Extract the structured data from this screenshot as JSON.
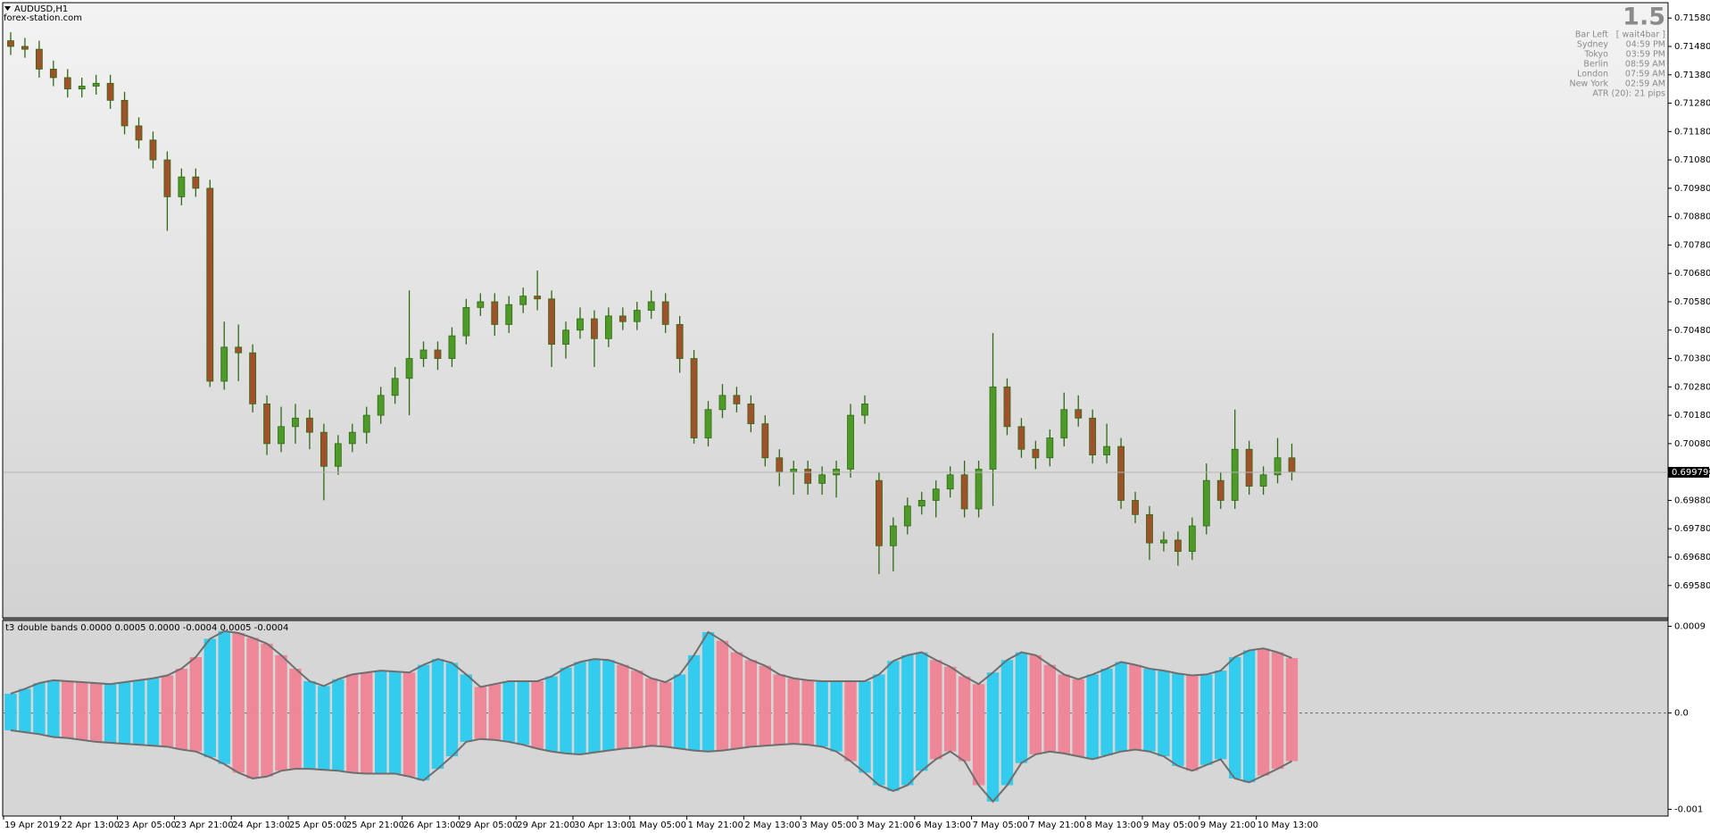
{
  "chart_data": [
    {
      "type": "candlestick",
      "title": "AUDUSD,H1",
      "subtitle": "forex-station.com",
      "up_color": "#4e9a28",
      "down_color": "#a0502a",
      "wick_color": "#2f6a12",
      "categories": [
        "19 Apr 2019",
        null,
        null,
        null,
        "22 Apr 13:00",
        null,
        null,
        null,
        "23 Apr 05:00",
        null,
        null,
        null,
        "23 Apr 21:00",
        null,
        null,
        null,
        "24 Apr 13:00",
        null,
        null,
        null,
        "25 Apr 05:00",
        null,
        null,
        null,
        "25 Apr 21:00",
        null,
        null,
        null,
        "26 Apr 13:00",
        null,
        null,
        null,
        "29 Apr 05:00",
        null,
        null,
        null,
        "29 Apr 21:00",
        null,
        null,
        null,
        "30 Apr 13:00",
        null,
        null,
        null,
        "1 May 05:00",
        null,
        null,
        null,
        "1 May 21:00",
        null,
        null,
        null,
        "2 May 13:00",
        null,
        null,
        null,
        "3 May 05:00",
        null,
        null,
        null,
        "3 May 21:00",
        null,
        null,
        null,
        "6 May 13:00",
        null,
        null,
        null,
        "7 May 05:00",
        null,
        null,
        null,
        "7 May 21:00",
        null,
        null,
        null,
        "8 May 13:00",
        null,
        null,
        null,
        "9 May 05:00",
        null,
        null,
        null,
        "9 May 21:00",
        null,
        null,
        null,
        "10 May 13:00",
        null,
        null
      ],
      "open": [
        0.715,
        0.7148,
        0.7147,
        0.714,
        0.7137,
        0.7133,
        0.7134,
        0.7135,
        0.7129,
        0.712,
        0.7115,
        0.7108,
        0.7095,
        0.7102,
        0.7098,
        0.703,
        0.7042,
        0.704,
        0.7022,
        0.7008,
        0.7014,
        0.7017,
        0.7012,
        0.7,
        0.7008,
        0.7012,
        0.7018,
        0.7025,
        0.7031,
        0.7038,
        0.7041,
        0.7038,
        0.7046,
        0.7056,
        0.7058,
        0.705,
        0.7057,
        0.706,
        0.7059,
        0.7043,
        0.7048,
        0.7052,
        0.7045,
        0.7053,
        0.7051,
        0.7055,
        0.7058,
        0.705,
        0.7038,
        0.701,
        0.702,
        0.7025,
        0.7022,
        0.7015,
        0.7003,
        0.6998,
        0.6999,
        0.6994,
        0.6997,
        0.6999,
        0.7018,
        0.6995,
        0.6972,
        0.6979,
        0.6986,
        0.6988,
        0.6992,
        0.6997,
        0.6985,
        0.6999,
        0.7028,
        0.7014,
        0.7006,
        0.7003,
        0.701,
        0.702,
        0.7017,
        0.7004,
        0.7007,
        0.6988,
        0.6983,
        0.6973,
        0.6974,
        0.697,
        0.6979,
        0.6995,
        0.6988,
        0.7006,
        0.6993,
        0.6997,
        0.7003
      ],
      "high": [
        0.7153,
        0.7151,
        0.715,
        0.7143,
        0.714,
        0.7137,
        0.7138,
        0.7138,
        0.7132,
        0.7123,
        0.7118,
        0.7111,
        0.7105,
        0.7105,
        0.7101,
        0.7051,
        0.705,
        0.7043,
        0.7025,
        0.7021,
        0.7022,
        0.702,
        0.7015,
        0.7011,
        0.7015,
        0.7021,
        0.7028,
        0.7035,
        0.7062,
        0.7044,
        0.7044,
        0.7049,
        0.7059,
        0.7061,
        0.7061,
        0.706,
        0.7063,
        0.7069,
        0.7062,
        0.7051,
        0.7056,
        0.7055,
        0.7056,
        0.7056,
        0.7058,
        0.7062,
        0.7061,
        0.7053,
        0.7041,
        0.7023,
        0.7029,
        0.7028,
        0.7025,
        0.7018,
        0.7006,
        0.7002,
        0.7002,
        0.7,
        0.7002,
        0.7022,
        0.7025,
        0.6998,
        0.6982,
        0.6989,
        0.6991,
        0.6995,
        0.7,
        0.7002,
        0.7002,
        0.7047,
        0.7031,
        0.7017,
        0.7009,
        0.7013,
        0.7026,
        0.7025,
        0.702,
        0.7015,
        0.701,
        0.6991,
        0.6986,
        0.6977,
        0.6977,
        0.6982,
        0.7001,
        0.6998,
        0.702,
        0.7009,
        0.7,
        0.701,
        0.7008
      ],
      "low": [
        0.7145,
        0.7144,
        0.7137,
        0.7134,
        0.713,
        0.713,
        0.7131,
        0.7126,
        0.7117,
        0.7112,
        0.7105,
        0.7083,
        0.7092,
        0.7095,
        0.7028,
        0.7027,
        0.703,
        0.7019,
        0.7004,
        0.7005,
        0.7008,
        0.7006,
        0.6988,
        0.6997,
        0.7005,
        0.7008,
        0.7015,
        0.7022,
        0.7018,
        0.7035,
        0.7034,
        0.7035,
        0.7043,
        0.7053,
        0.7046,
        0.7047,
        0.7054,
        0.7055,
        0.7035,
        0.7038,
        0.7045,
        0.7035,
        0.7042,
        0.7048,
        0.7048,
        0.7052,
        0.7047,
        0.7033,
        0.7008,
        0.7007,
        0.7017,
        0.7019,
        0.7012,
        0.7,
        0.6993,
        0.699,
        0.699,
        0.699,
        0.6989,
        0.6996,
        0.7015,
        0.6962,
        0.6963,
        0.6976,
        0.6983,
        0.6982,
        0.6989,
        0.6982,
        0.6982,
        0.6986,
        0.7011,
        0.7003,
        0.6999,
        0.7,
        0.7007,
        0.7014,
        0.7001,
        0.7001,
        0.6985,
        0.698,
        0.6967,
        0.697,
        0.6965,
        0.6967,
        0.6976,
        0.6985,
        0.6985,
        0.699,
        0.699,
        0.6994,
        0.6995
      ],
      "close": [
        0.7148,
        0.7147,
        0.714,
        0.7137,
        0.7133,
        0.7134,
        0.7135,
        0.7129,
        0.712,
        0.7115,
        0.7108,
        0.7095,
        0.7102,
        0.7098,
        0.703,
        0.7042,
        0.704,
        0.7022,
        0.7008,
        0.7014,
        0.7017,
        0.7012,
        0.7,
        0.7008,
        0.7012,
        0.7018,
        0.7025,
        0.7031,
        0.7038,
        0.7041,
        0.7038,
        0.7046,
        0.7056,
        0.7058,
        0.705,
        0.7057,
        0.706,
        0.7059,
        0.7043,
        0.7048,
        0.7052,
        0.7045,
        0.7053,
        0.7051,
        0.7055,
        0.7058,
        0.705,
        0.7038,
        0.701,
        0.702,
        0.7025,
        0.7022,
        0.7015,
        0.7003,
        0.6998,
        0.6999,
        0.6994,
        0.6997,
        0.6999,
        0.7018,
        0.7022,
        0.6972,
        0.6979,
        0.6986,
        0.6988,
        0.6992,
        0.6997,
        0.6985,
        0.6999,
        0.7028,
        0.7014,
        0.7006,
        0.7003,
        0.701,
        0.702,
        0.7017,
        0.7004,
        0.7007,
        0.6988,
        0.6983,
        0.6973,
        0.6974,
        0.697,
        0.6979,
        0.6995,
        0.6988,
        0.7006,
        0.6993,
        0.6997,
        0.7003,
        0.6998
      ],
      "last_price": 0.69979,
      "ylim": [
        0.69466,
        0.71631
      ],
      "yticks": [
        {
          "value": 0.6958,
          "label": "0.69580"
        },
        {
          "value": 0.6968,
          "label": "0.69680"
        },
        {
          "value": 0.6978,
          "label": "0.69780"
        },
        {
          "value": 0.6988,
          "label": "0.69880"
        },
        {
          "value": 0.6998,
          "label": "0.69980"
        },
        {
          "value": 0.7008,
          "label": "0.70080"
        },
        {
          "value": 0.7018,
          "label": "0.70180"
        },
        {
          "value": 0.7028,
          "label": "0.70280"
        },
        {
          "value": 0.7038,
          "label": "0.70380"
        },
        {
          "value": 0.7048,
          "label": "0.70480"
        },
        {
          "value": 0.7058,
          "label": "0.70580"
        },
        {
          "value": 0.7068,
          "label": "0.70680"
        },
        {
          "value": 0.7078,
          "label": "0.70780"
        },
        {
          "value": 0.7088,
          "label": "0.70880"
        },
        {
          "value": 0.7098,
          "label": "0.70980"
        },
        {
          "value": 0.7108,
          "label": "0.71080"
        },
        {
          "value": 0.7118,
          "label": "0.71180"
        },
        {
          "value": 0.7128,
          "label": "0.71280"
        },
        {
          "value": 0.7138,
          "label": "0.71380"
        },
        {
          "value": 0.7148,
          "label": "0.71480"
        },
        {
          "value": 0.7158,
          "label": "0.71580"
        }
      ]
    },
    {
      "type": "bands",
      "title": "t3 double bands 0.0000 0.0005 0.0000 -0.0004 0.0005 -0.0004",
      "band_color": "#6e6e6e",
      "series": [
        {
          "values": [
            0.0002,
            0.00025,
            0.00031,
            0.00034,
            0.00033,
            0.00032,
            0.00031,
            0.0003,
            0.00032,
            0.00034,
            0.00036,
            0.00039,
            0.00046,
            0.00058,
            0.00077,
            0.00085,
            0.00083,
            0.00078,
            0.00072,
            0.0006,
            0.00046,
            0.00033,
            0.00028,
            0.00035,
            0.0004,
            0.00042,
            0.00044,
            0.00043,
            0.00042,
            0.0005,
            0.00056,
            0.00052,
            0.0004,
            0.00027,
            0.0003,
            0.00033,
            0.00033,
            0.00033,
            0.00038,
            0.00047,
            0.00053,
            0.00056,
            0.00055,
            0.0005,
            0.00044,
            0.00036,
            0.00032,
            0.0004,
            0.0006,
            0.00084,
            0.00075,
            0.00063,
            0.00055,
            0.00049,
            0.0004,
            0.00036,
            0.00034,
            0.00033,
            0.00033,
            0.00033,
            0.00033,
            0.0004,
            0.00054,
            0.0006,
            0.00063,
            0.00055,
            0.00048,
            0.00038,
            0.0003,
            0.00042,
            0.00055,
            0.00063,
            0.0006,
            0.0005,
            0.0004,
            0.00035,
            0.0004,
            0.00046,
            0.00053,
            0.0005,
            0.00046,
            0.00044,
            0.00041,
            0.00039,
            0.0004,
            0.00044,
            0.00058,
            0.00065,
            0.00067,
            0.00063,
            0.00057
          ],
          "colors": [
            "#3ce",
            "#3ce",
            "#3ce",
            "#3ce",
            "#e89",
            "#e89",
            "#e89",
            "#3ce",
            "#3ce",
            "#3ce",
            "#3ce",
            "#e89",
            "#e89",
            "#e89",
            "#3ce",
            "#3ce",
            "#e89",
            "#e89",
            "#e89",
            "#e89",
            "#e89",
            "#3ce",
            "#3ce",
            "#3ce",
            "#e89",
            "#e89",
            "#3ce",
            "#3ce",
            "#e89",
            "#3ce",
            "#3ce",
            "#3ce",
            "#3ce",
            "#e89",
            "#e89",
            "#3ce",
            "#3ce",
            "#e89",
            "#3ce",
            "#3ce",
            "#3ce",
            "#3ce",
            "#3ce",
            "#e89",
            "#e89",
            "#e89",
            "#e89",
            "#3ce",
            "#3ce",
            "#3ce",
            "#e89",
            "#e89",
            "#e89",
            "#e89",
            "#e89",
            "#e89",
            "#e89",
            "#3ce",
            "#3ce",
            "#e89",
            "#3ce",
            "#3ce",
            "#3ce",
            "#3ce",
            "#3ce",
            "#e89",
            "#e89",
            "#e89",
            "#e89",
            "#3ce",
            "#3ce",
            "#3ce",
            "#e89",
            "#e89",
            "#e89",
            "#e89",
            "#3ce",
            "#3ce",
            "#3ce",
            "#e89",
            "#3ce",
            "#3ce",
            "#3ce",
            "#e89",
            "#3ce",
            "#3ce",
            "#3ce",
            "#3ce",
            "#e89",
            "#e89",
            "#e89"
          ]
        },
        {
          "values": [
            -0.00018,
            -0.0002,
            -0.00022,
            -0.00025,
            -0.00026,
            -0.00028,
            -0.0003,
            -0.00031,
            -0.00032,
            -0.00033,
            -0.00034,
            -0.00035,
            -0.00038,
            -0.0004,
            -0.00046,
            -0.00053,
            -0.00062,
            -0.00068,
            -0.00066,
            -0.0006,
            -0.00058,
            -0.00058,
            -0.00059,
            -0.0006,
            -0.00062,
            -0.00063,
            -0.00063,
            -0.00063,
            -0.00066,
            -0.0007,
            -0.00058,
            -0.00045,
            -0.0003,
            -0.00027,
            -0.00028,
            -0.0003,
            -0.00033,
            -0.00037,
            -0.0004,
            -0.00042,
            -0.00043,
            -0.00041,
            -0.00039,
            -0.00037,
            -0.00036,
            -0.00034,
            -0.00035,
            -0.00037,
            -0.00039,
            -0.0004,
            -0.00039,
            -0.00037,
            -0.00035,
            -0.00034,
            -0.00033,
            -0.00032,
            -0.00033,
            -0.00035,
            -0.0004,
            -0.0005,
            -0.00062,
            -0.00075,
            -0.00081,
            -0.00075,
            -0.0006,
            -0.00048,
            -0.0004,
            -0.0005,
            -0.00075,
            -0.00092,
            -0.00075,
            -0.00052,
            -0.00043,
            -0.0004,
            -0.00042,
            -0.00045,
            -0.00048,
            -0.00044,
            -0.0004,
            -0.00038,
            -0.0004,
            -0.00045,
            -0.00055,
            -0.0006,
            -0.00054,
            -0.00048,
            -0.00068,
            -0.00072,
            -0.00065,
            -0.00058,
            -0.0005
          ],
          "colors": [
            "#3ce",
            "#3ce",
            "#3ce",
            "#3ce",
            "#e89",
            "#e89",
            "#e89",
            "#3ce",
            "#3ce",
            "#3ce",
            "#3ce",
            "#e89",
            "#e89",
            "#e89",
            "#3ce",
            "#3ce",
            "#e89",
            "#e89",
            "#e89",
            "#e89",
            "#e89",
            "#3ce",
            "#3ce",
            "#3ce",
            "#e89",
            "#e89",
            "#3ce",
            "#3ce",
            "#e89",
            "#3ce",
            "#3ce",
            "#3ce",
            "#3ce",
            "#e89",
            "#e89",
            "#3ce",
            "#3ce",
            "#e89",
            "#3ce",
            "#3ce",
            "#3ce",
            "#3ce",
            "#3ce",
            "#e89",
            "#e89",
            "#e89",
            "#e89",
            "#3ce",
            "#3ce",
            "#3ce",
            "#e89",
            "#e89",
            "#e89",
            "#e89",
            "#e89",
            "#e89",
            "#e89",
            "#3ce",
            "#3ce",
            "#e89",
            "#3ce",
            "#3ce",
            "#3ce",
            "#3ce",
            "#3ce",
            "#e89",
            "#e89",
            "#e89",
            "#e89",
            "#3ce",
            "#3ce",
            "#3ce",
            "#e89",
            "#e89",
            "#e89",
            "#e89",
            "#3ce",
            "#3ce",
            "#3ce",
            "#e89",
            "#3ce",
            "#3ce",
            "#3ce",
            "#e89",
            "#3ce",
            "#3ce",
            "#3ce",
            "#3ce",
            "#e89",
            "#e89",
            "#e89"
          ]
        }
      ],
      "ylim": [
        -0.00107,
        0.00096
      ],
      "yticks": [
        0.0009,
        {
          "value": 0,
          "label": "0.0"
        },
        -0.001
      ]
    }
  ],
  "info_panel": {
    "value": "1.5",
    "rows": [
      [
        "Bar Left",
        "[ wait4bar ]"
      ],
      [
        "Sydney",
        "04:59 PM"
      ],
      [
        "Tokyo",
        "03:59 PM"
      ],
      [
        "Berlin",
        "08:59 AM"
      ],
      [
        "London",
        "07:59 AM"
      ],
      [
        "New York",
        "02:59 AM"
      ]
    ],
    "atr": "ATR (20): 21 pips"
  }
}
